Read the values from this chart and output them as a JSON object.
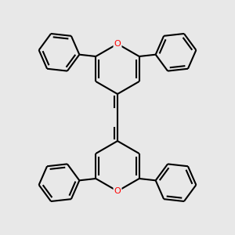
{
  "background_color": "#e8e8e8",
  "bond_color": "#000000",
  "oxygen_color": "#ff0000",
  "line_width": 1.5,
  "dpi": 100,
  "fig_size": [
    3.0,
    3.0
  ]
}
